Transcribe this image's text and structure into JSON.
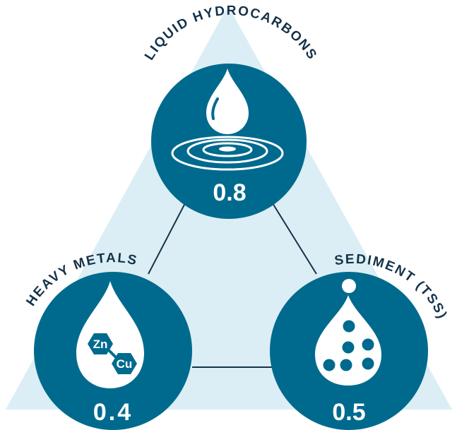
{
  "colors": {
    "background": "#ffffff",
    "triangle": "#dbeef5",
    "circle": "#006a8e",
    "lines": "#14324a",
    "label_text": "#14324a",
    "icon": "#ffffff"
  },
  "nodes": {
    "top": {
      "label": "LIQUID HYDROCARBONS",
      "value": "0.8",
      "icon": "water-drop-ripple-icon"
    },
    "left": {
      "label": "HEAVY METALS",
      "value": "0.4",
      "icon": "metal-drop-icon",
      "chem_1": "Zn",
      "chem_2": "Cu"
    },
    "right": {
      "label": "SEDIMENT (TSS)",
      "value": "0.5",
      "icon": "sediment-drop-icon"
    }
  }
}
